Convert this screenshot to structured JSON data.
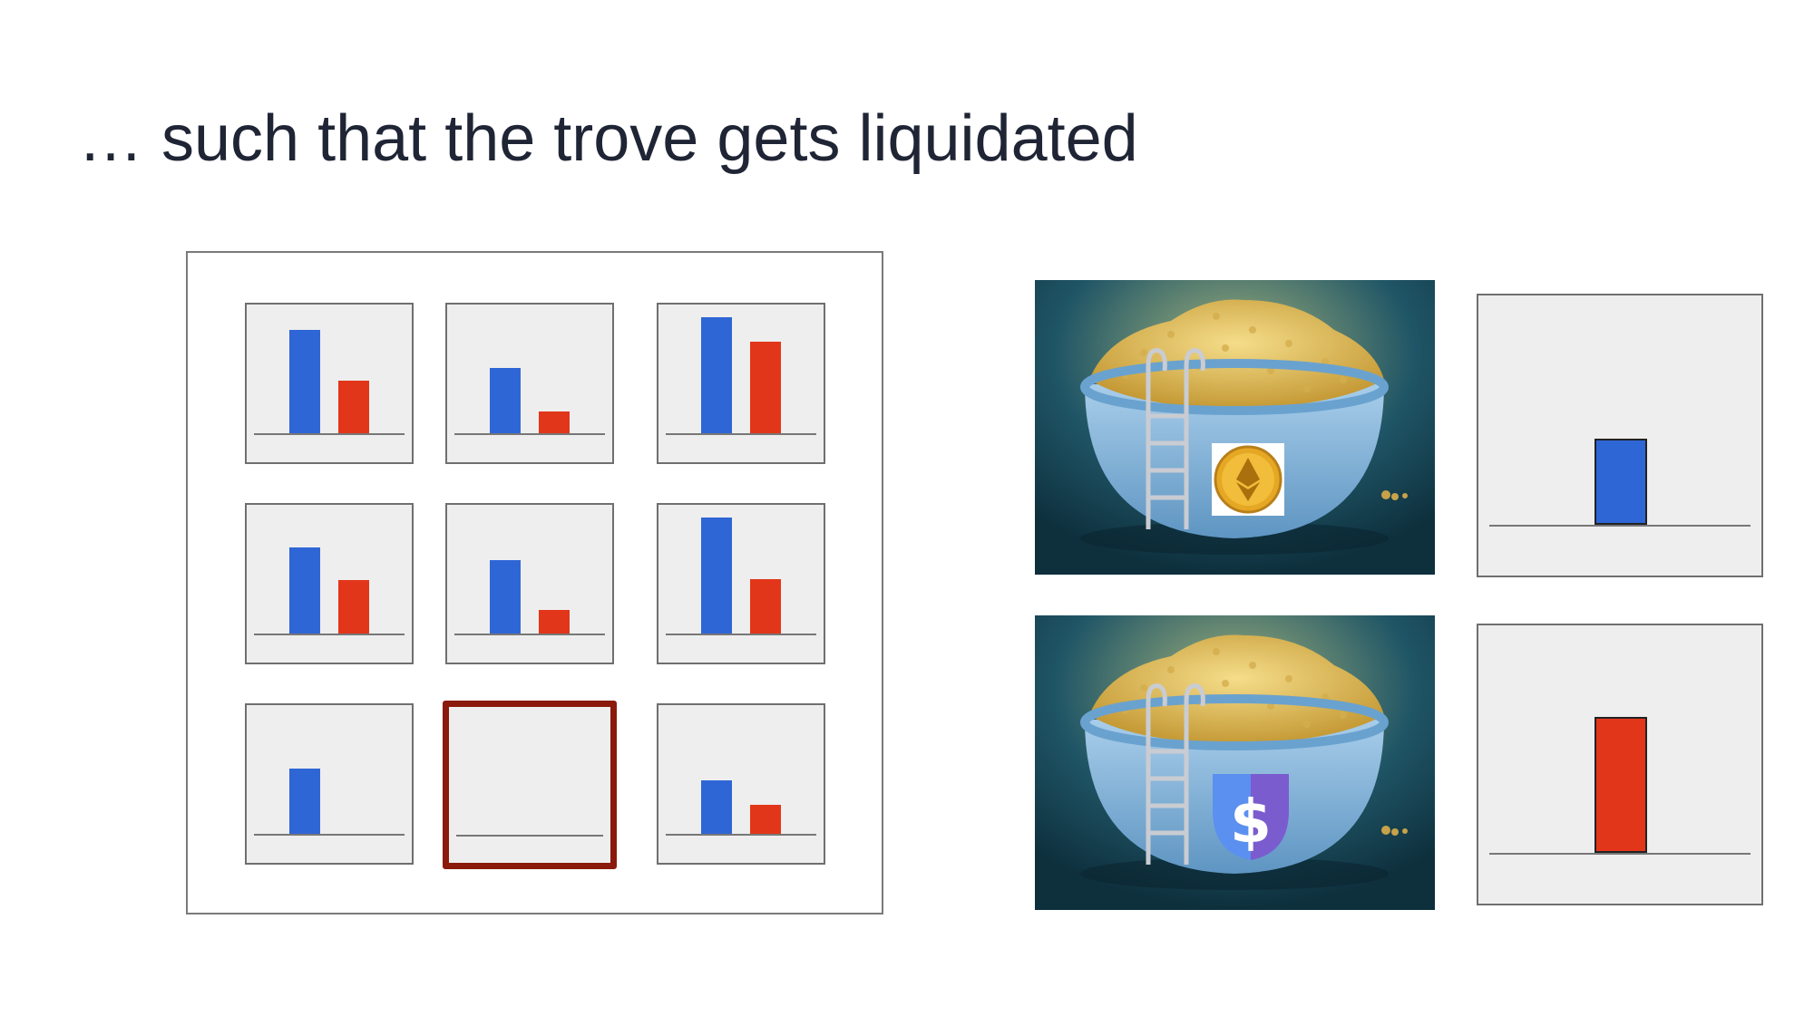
{
  "slide": {
    "title": "… such that the trove gets liquidated"
  },
  "colors": {
    "collateral_bar": "#2f66d6",
    "debt_bar": "#e2361a",
    "highlight_border": "#8a1a0c",
    "title_text": "#1f2535"
  },
  "trove_grid": {
    "unit_max": 100,
    "troves": [
      {
        "collateral": 89,
        "debt": 45,
        "highlighted": false
      },
      {
        "collateral": 56,
        "debt": 19,
        "highlighted": false
      },
      {
        "collateral": 100,
        "debt": 79,
        "highlighted": false
      },
      {
        "collateral": 74,
        "debt": 46,
        "highlighted": false
      },
      {
        "collateral": 63,
        "debt": 20,
        "highlighted": false
      },
      {
        "collateral": 100,
        "debt": 47,
        "highlighted": false
      },
      {
        "collateral": 56,
        "debt": 0,
        "highlighted": false
      },
      {
        "collateral": 0,
        "debt": 0,
        "highlighted": true
      },
      {
        "collateral": 46,
        "debt": 25,
        "highlighted": false
      }
    ]
  },
  "pools": [
    {
      "name": "ETH pool",
      "icon": "ethereum-coin-icon",
      "side_bar_color": "blue",
      "side_bar_value": 38
    },
    {
      "name": "stablecoin pool",
      "icon": "dollar-shield-icon",
      "side_bar_color": "red",
      "side_bar_value": 60
    }
  ]
}
